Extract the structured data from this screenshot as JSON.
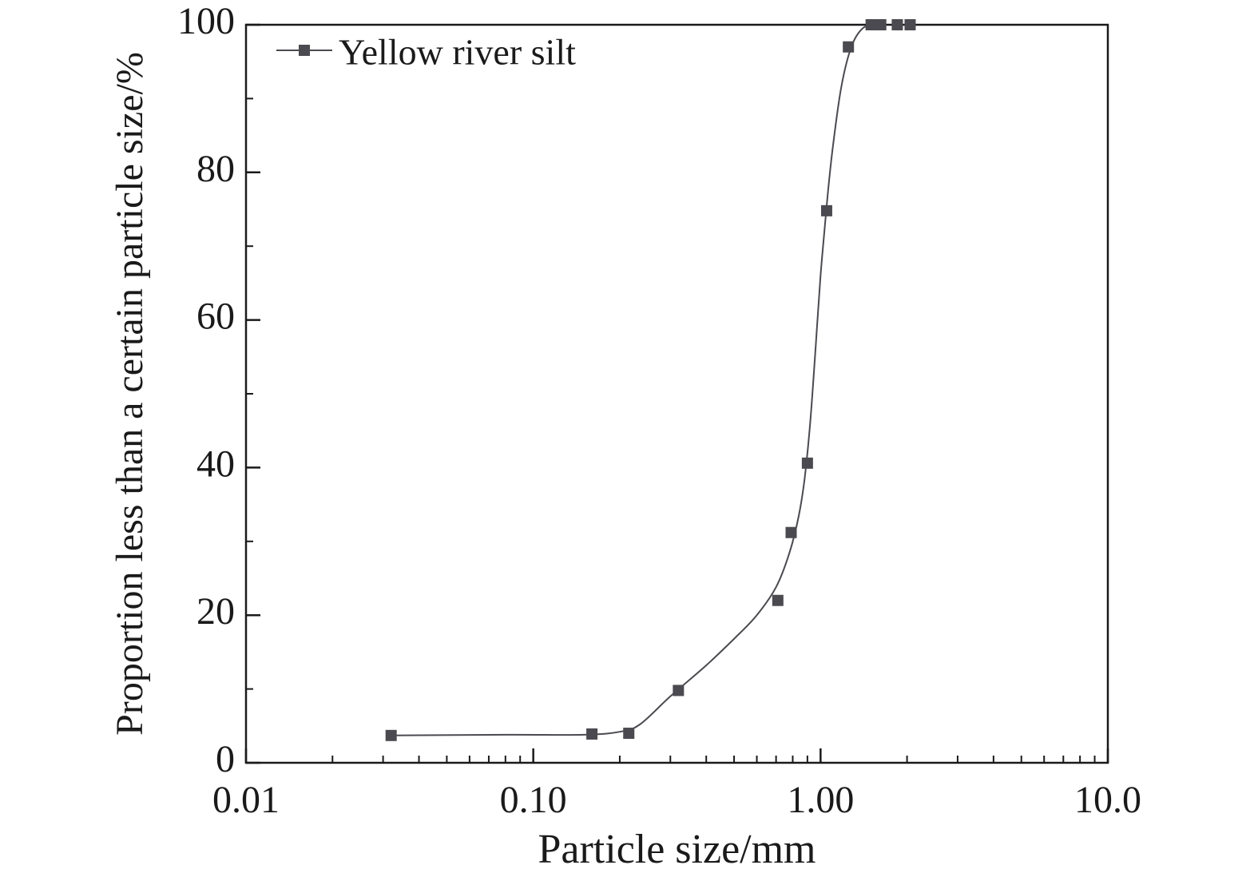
{
  "chart_data": {
    "type": "scatter",
    "xlabel": "Particle size/mm",
    "ylabel": "Proportion less than a certain particle size/%",
    "x_scale": "log",
    "xlim": [
      0.01,
      10.0
    ],
    "ylim": [
      0,
      100
    ],
    "x_ticks": [
      0.01,
      0.1,
      1.0,
      10.0
    ],
    "x_tick_labels": [
      "0.01",
      "0.10",
      "1.00",
      "10.0"
    ],
    "y_ticks": [
      0,
      20,
      40,
      60,
      80,
      100
    ],
    "y_tick_labels": [
      "0",
      "20",
      "40",
      "60",
      "80",
      "100"
    ],
    "legend_position": "top-left",
    "grid": false,
    "series": [
      {
        "name": "Yellow river silt",
        "color": "#4a4a50",
        "marker": "square",
        "points": [
          {
            "x": 0.032,
            "y": 3.7
          },
          {
            "x": 0.16,
            "y": 3.9
          },
          {
            "x": 0.215,
            "y": 4.0
          },
          {
            "x": 0.32,
            "y": 9.8
          },
          {
            "x": 0.71,
            "y": 22.0
          },
          {
            "x": 0.79,
            "y": 31.2
          },
          {
            "x": 0.9,
            "y": 40.6
          },
          {
            "x": 1.05,
            "y": 74.8
          },
          {
            "x": 1.25,
            "y": 97.0
          },
          {
            "x": 1.5,
            "y": 100.0
          },
          {
            "x": 1.62,
            "y": 100.0
          },
          {
            "x": 1.85,
            "y": 100.0
          },
          {
            "x": 2.05,
            "y": 100.0
          }
        ],
        "fit_curve": [
          {
            "x": 0.032,
            "y": 3.7
          },
          {
            "x": 0.08,
            "y": 3.8
          },
          {
            "x": 0.15,
            "y": 3.8
          },
          {
            "x": 0.2,
            "y": 4.2
          },
          {
            "x": 0.235,
            "y": 5.2
          },
          {
            "x": 0.3,
            "y": 9.0
          },
          {
            "x": 0.4,
            "y": 13.2
          },
          {
            "x": 0.5,
            "y": 16.8
          },
          {
            "x": 0.6,
            "y": 20.0
          },
          {
            "x": 0.7,
            "y": 23.8
          },
          {
            "x": 0.78,
            "y": 28.5
          },
          {
            "x": 0.84,
            "y": 33.5
          },
          {
            "x": 0.88,
            "y": 38.5
          },
          {
            "x": 0.92,
            "y": 46.0
          },
          {
            "x": 0.96,
            "y": 56.0
          },
          {
            "x": 1.0,
            "y": 66.0
          },
          {
            "x": 1.05,
            "y": 75.5
          },
          {
            "x": 1.1,
            "y": 83.0
          },
          {
            "x": 1.18,
            "y": 91.5
          },
          {
            "x": 1.28,
            "y": 97.0
          },
          {
            "x": 1.4,
            "y": 99.5
          },
          {
            "x": 1.55,
            "y": 100.0
          }
        ]
      }
    ]
  }
}
